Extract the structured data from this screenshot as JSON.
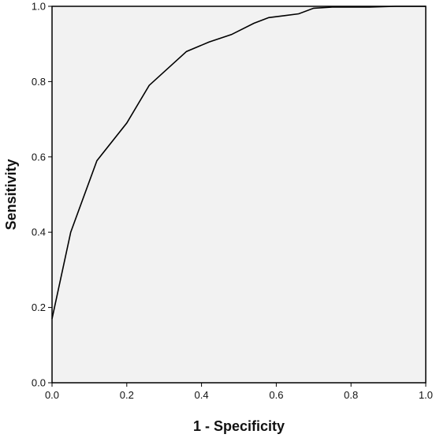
{
  "chart_data": {
    "type": "line",
    "title": "",
    "xlabel": "1 - Specificity",
    "ylabel": "Sensitivity",
    "xlim": [
      0.0,
      1.0
    ],
    "ylim": [
      0.0,
      1.0
    ],
    "xticks": [
      "0.0",
      "0.2",
      "0.4",
      "0.6",
      "0.8",
      "1.0"
    ],
    "yticks": [
      "0.0",
      "0.2",
      "0.4",
      "0.6",
      "0.8",
      "1.0"
    ],
    "grid": false,
    "legend": "none",
    "colors": {
      "plot_background": "#f2f2f2",
      "line": "#000000",
      "frame": "#000000"
    },
    "series": [
      {
        "x": [
          0.0,
          0.05,
          0.12,
          0.2,
          0.26,
          0.36,
          0.42,
          0.48,
          0.54,
          0.58,
          0.62,
          0.66,
          0.7,
          0.75,
          0.85,
          0.92,
          1.0
        ],
        "y": [
          0.17,
          0.4,
          0.59,
          0.69,
          0.79,
          0.88,
          0.905,
          0.925,
          0.955,
          0.97,
          0.975,
          0.98,
          0.995,
          0.998,
          0.998,
          1.0,
          1.0
        ]
      }
    ]
  }
}
